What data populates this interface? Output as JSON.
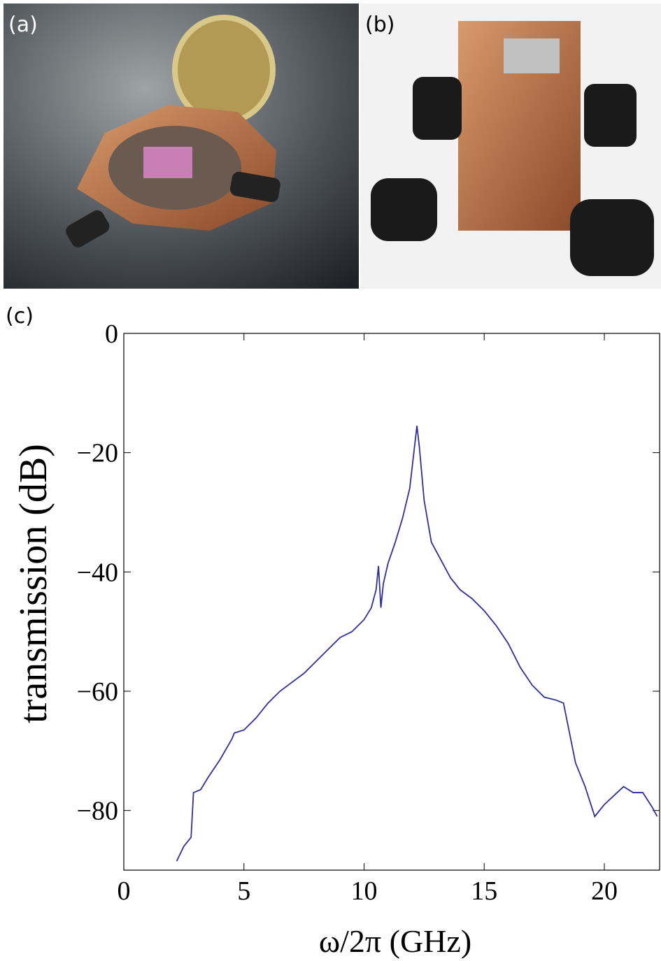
{
  "panel_labels": [
    "(a)",
    "(b)"
  ],
  "chart_data": {
    "type": "line",
    "panel_label": "(c)",
    "x_label": "ω/2π (GHz)",
    "y_label": "transmission (dB)",
    "x": [
      2.2,
      2.5,
      2.8,
      2.9,
      3.2,
      3.5,
      4,
      4.5,
      4.6,
      5,
      5.5,
      6,
      6.5,
      7,
      7.5,
      8,
      8.5,
      9,
      9.5,
      10,
      10.3,
      10.5,
      10.6,
      10.7,
      10.8,
      11,
      11.3,
      11.6,
      11.9,
      12.1,
      12.2,
      12.3,
      12.5,
      12.8,
      13.2,
      13.6,
      14,
      14.5,
      15,
      15.5,
      16,
      16.5,
      17,
      17.5,
      18,
      18.3,
      18.5,
      18.8,
      19.2,
      19.6,
      20,
      20.4,
      20.8,
      21.2,
      21.6,
      22,
      22.2
    ],
    "series": [
      {
        "color": "#2e3192",
        "values": [
          -88.5,
          -86,
          -84.5,
          -77,
          -76.5,
          -74.5,
          -71.5,
          -68,
          -67,
          -66.5,
          -64.5,
          -62,
          -60,
          -58.5,
          -57,
          -55,
          -53,
          -51,
          -50,
          -48,
          -46,
          -43,
          -39,
          -46,
          -42,
          -38.5,
          -35,
          -31,
          -26,
          -19,
          -15.5,
          -19,
          -28,
          -35,
          -38,
          -41,
          -43,
          -44.5,
          -46.5,
          -49,
          -52,
          -56,
          -59,
          -61,
          -61.5,
          -62,
          -66,
          -72,
          -76,
          -81,
          -79,
          -77.5,
          -76,
          -77,
          -77,
          -79.5,
          -81
        ]
      }
    ],
    "xlim": [
      0,
      22.3
    ],
    "ylim": [
      -90,
      0
    ],
    "xticks": [
      0,
      5,
      10,
      15,
      20
    ],
    "yticks": [
      0,
      {
        "value": -20,
        "label": "−20"
      },
      {
        "value": -40,
        "label": "−40"
      },
      {
        "value": -60,
        "label": "−60"
      },
      {
        "value": -80,
        "label": "−80"
      }
    ]
  }
}
